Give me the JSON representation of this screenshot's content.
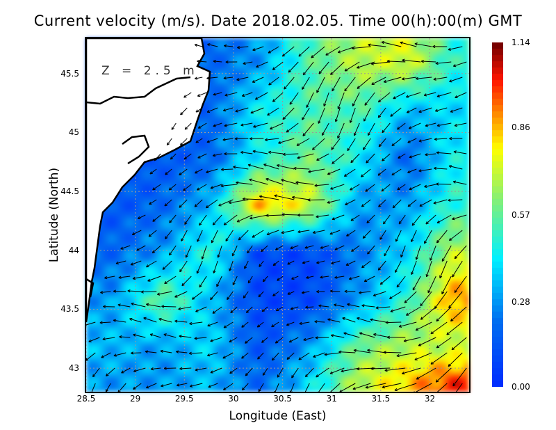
{
  "title": "Current velocity (m/s). Date 2018.02.05. Time 00(h):00(m) GMT",
  "depth_label": "Z = 2.5 m",
  "chart_data": {
    "type": "heatmap",
    "title": "Current velocity (m/s). Date 2018.02.05. Time 00(h):00(m) GMT",
    "xlabel": "Longitude (East)",
    "ylabel": "Latitude (North)",
    "xlim": [
      28.5,
      32.4
    ],
    "ylim": [
      42.8,
      45.8
    ],
    "x_ticks": [
      "28.5",
      "29",
      "29.5",
      "30",
      "30.5",
      "31",
      "31.5",
      "32"
    ],
    "y_ticks": [
      "45.5",
      "45",
      "44.5",
      "44",
      "43.5",
      "43"
    ],
    "grid": true,
    "colorbar": {
      "ticks": [
        "1.14",
        "0.86",
        "0.57",
        "0.28",
        "0.00"
      ],
      "range": [
        0.0,
        1.14
      ],
      "units": "m/s"
    },
    "speed_grid": {
      "lon": [
        28.75,
        29.25,
        29.75,
        30.25,
        30.75,
        31.25,
        31.75,
        32.2
      ],
      "lat": [
        45.6,
        45.2,
        44.8,
        44.4,
        44.0,
        43.6,
        43.2,
        42.9
      ],
      "values": [
        [
          null,
          null,
          0.2,
          0.3,
          0.55,
          0.7,
          0.75,
          0.5
        ],
        [
          null,
          null,
          0.2,
          0.45,
          0.55,
          0.55,
          0.35,
          0.4
        ],
        [
          null,
          0.15,
          0.2,
          0.45,
          0.6,
          0.45,
          0.2,
          0.45
        ],
        [
          0.15,
          0.2,
          0.35,
          0.9,
          0.75,
          0.3,
          0.3,
          0.5
        ],
        [
          0.2,
          0.3,
          0.5,
          0.1,
          0.1,
          0.25,
          0.4,
          0.7
        ],
        [
          0.3,
          0.6,
          0.35,
          0.1,
          0.1,
          0.3,
          0.5,
          0.9
        ],
        [
          0.35,
          0.3,
          0.4,
          0.15,
          0.3,
          0.6,
          0.7,
          0.7
        ],
        [
          0.3,
          0.3,
          0.35,
          0.2,
          0.4,
          0.7,
          0.85,
          1.0
        ]
      ]
    },
    "vectors": {
      "dominant_direction": "southwest"
    }
  }
}
